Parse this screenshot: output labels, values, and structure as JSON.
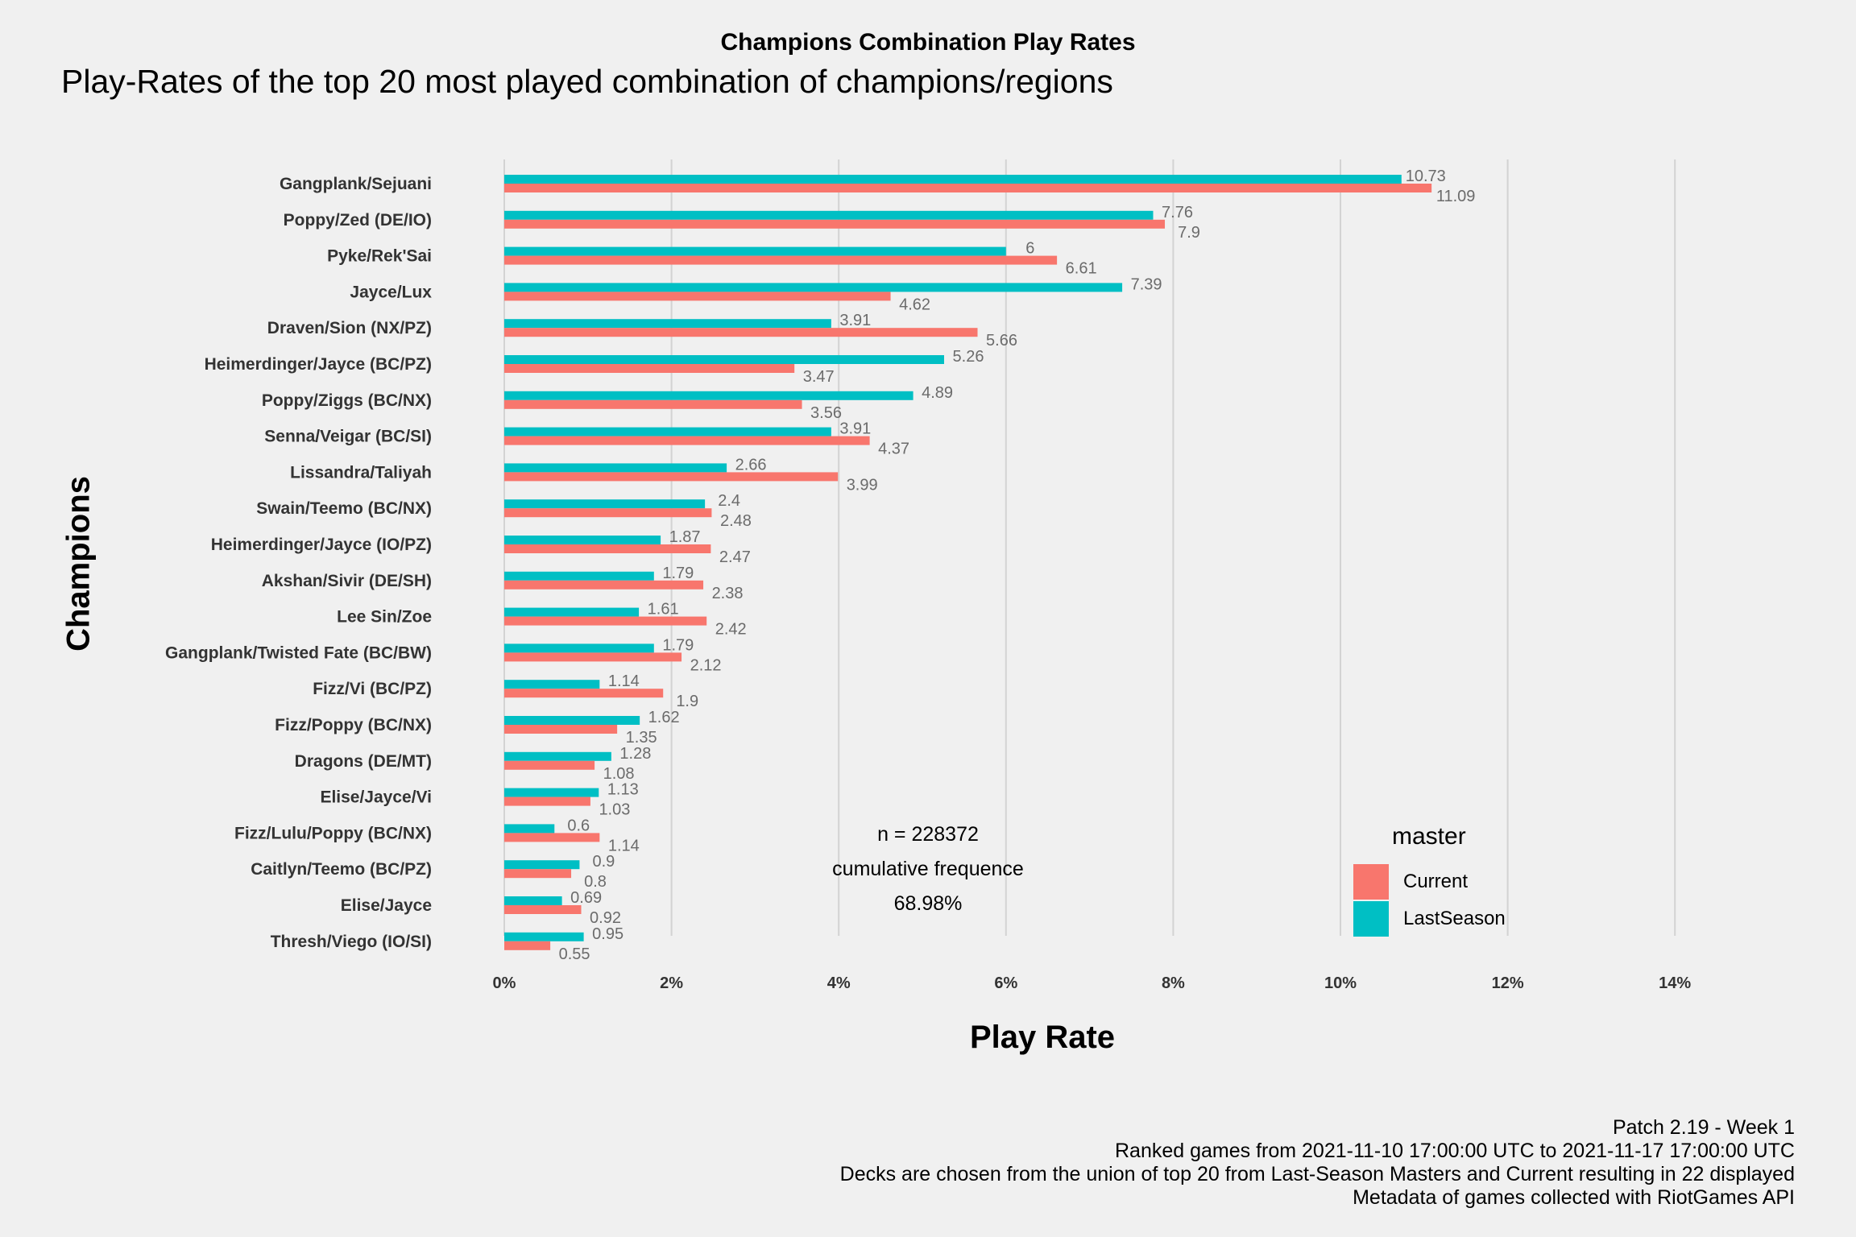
{
  "chart_data": {
    "type": "bar",
    "orientation": "horizontal",
    "title": "Champions Combination Play Rates",
    "subtitle": "Play-Rates of the top 20 most played combination of champions/regions",
    "xlabel": "Play Rate",
    "ylabel": "Champions",
    "xlim": [
      0,
      14
    ],
    "xticks": [
      "0%",
      "2%",
      "4%",
      "6%",
      "8%",
      "10%",
      "12%",
      "14%"
    ],
    "grid": true,
    "categories": [
      "Gangplank/Sejuani",
      "Poppy/Zed (DE/IO)",
      "Pyke/Rek'Sai",
      "Jayce/Lux",
      "Draven/Sion (NX/PZ)",
      "Heimerdinger/Jayce (BC/PZ)",
      "Poppy/Ziggs (BC/NX)",
      "Senna/Veigar (BC/SI)",
      "Lissandra/Taliyah",
      "Swain/Teemo (BC/NX)",
      "Heimerdinger/Jayce (IO/PZ)",
      "Akshan/Sivir (DE/SH)",
      "Lee Sin/Zoe",
      "Gangplank/Twisted Fate (BC/BW)",
      "Fizz/Vi (BC/PZ)",
      "Fizz/Poppy (BC/NX)",
      "Dragons (DE/MT)",
      "Elise/Jayce/Vi",
      "Fizz/Lulu/Poppy (BC/NX)",
      "Caitlyn/Teemo (BC/PZ)",
      "Elise/Jayce",
      "Thresh/Viego (IO/SI)"
    ],
    "series": [
      {
        "name": "Current",
        "color": "#F8766D",
        "values": [
          11.09,
          7.9,
          6.61,
          4.62,
          5.66,
          3.47,
          3.56,
          4.37,
          3.99,
          2.48,
          2.47,
          2.38,
          2.42,
          2.12,
          1.9,
          1.35,
          1.08,
          1.03,
          1.14,
          0.8,
          0.92,
          0.55
        ],
        "labels": [
          "11.09",
          "7.9",
          "6.61",
          "4.62",
          "5.66",
          "3.47",
          "3.56",
          "4.37",
          "3.99",
          "2.48",
          "2.47",
          "2.38",
          "2.42",
          "2.12",
          "1.9",
          "1.35",
          "1.08",
          "1.03",
          "1.14",
          "0.8",
          "0.92",
          "0.55"
        ]
      },
      {
        "name": "LastSeason",
        "color": "#00BFC4",
        "values": [
          10.73,
          7.76,
          6,
          7.39,
          3.91,
          5.26,
          4.89,
          3.91,
          2.66,
          2.4,
          1.87,
          1.79,
          1.61,
          1.79,
          1.14,
          1.62,
          1.28,
          1.13,
          0.6,
          0.9,
          0.69,
          0.95
        ],
        "labels": [
          "10.73",
          "7.76",
          "6",
          "7.39",
          "3.91",
          "5.26",
          "4.89",
          "3.91",
          "2.66",
          "2.4",
          "1.87",
          "1.79",
          "1.61",
          "1.79",
          "1.14",
          "1.62",
          "1.28",
          "1.13",
          "0.6",
          "0.9",
          "0.69",
          "0.95"
        ]
      }
    ],
    "legend": {
      "title": "master",
      "placement": "right"
    },
    "annotations": [
      "n = 228372",
      "cumulative frequence",
      "68.98%"
    ]
  },
  "caption": [
    "Patch 2.19 - Week 1",
    "Ranked games from 2021-11-10 17:00:00 UTC to 2021-11-17 17:00:00 UTC",
    "Decks are chosen from the union of top 20 from Last-Season Masters and Current resulting in 22 displayed",
    "Metadata of games collected with RiotGames API"
  ]
}
